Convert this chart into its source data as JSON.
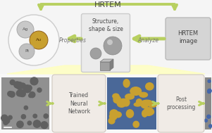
{
  "title": "HRTEM",
  "bg_color": "#f5f5f5",
  "top_arrow_color": "#b8d060",
  "flow_arrow_color": "#b8d060",
  "center_box_bg": "#ebebeb",
  "center_box_edge": "#cccccc",
  "hrtem_box_bg": "#d5d5d5",
  "hrtem_box_edge": "#bbbbbb",
  "neural_box_bg": "#f0ebe6",
  "neural_box_edge": "#d0c8c0",
  "post_box_bg": "#f0ebe6",
  "post_box_edge": "#d0c8c0",
  "circle_bg": "#f8f8f8",
  "circle_edge": "#cccccc",
  "ag_color": "#c8c8c8",
  "au_color": "#c8a030",
  "pt_color": "#c0c0c0",
  "nanoparticle_label": "Structure,\nshape & size",
  "properties_label": "Properties",
  "analyze_label": "Analyze",
  "hrtem_label": "HRTEM\nimage",
  "neural_label": "Trained\nNeural\nNetwork",
  "post_label": "Post\nprocessing",
  "yellow_color": "#ffffc0",
  "em_bg": "#909090",
  "em_dot": "#606060",
  "seg_bg": "#4a6898",
  "seg_blob": "#c8a030",
  "res_bg": "#888888",
  "res_blob": "#4466aa",
  "sphere_color": "#a0a0a0",
  "cube_front": "#a0a0a0",
  "cube_top": "#c0c0c0",
  "cube_right": "#808080",
  "text_dark": "#444444",
  "text_mid": "#888888",
  "text_label": "#777777"
}
